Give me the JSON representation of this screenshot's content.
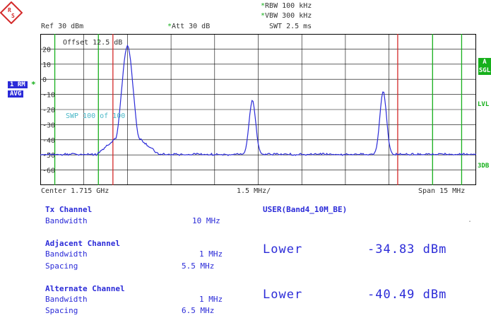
{
  "header": {
    "ref": "Ref  30 dBm",
    "att": "Att  30 dB",
    "rbw": "RBW 100 kHz",
    "vbw": "VBW 300 kHz",
    "swt": "SWT 2.5 ms"
  },
  "left_badges": {
    "trace": "1 RM",
    "avg": "AVG"
  },
  "right_badges": {
    "a": "A",
    "sgl": "SGL",
    "lvl": "LVL",
    "db3": "3DB"
  },
  "plot_annotations": {
    "offset": "Offset  12.5 dB",
    "swp": "SWP   100 of   100"
  },
  "axis": {
    "y_ticks": [
      "20",
      "10",
      "0",
      "-10",
      "-20",
      "-30",
      "-40",
      "-50",
      "-60"
    ],
    "center": "Center 1.715 GHz",
    "div": "1.5 MHz/",
    "span": "Span 15 MHz"
  },
  "colors": {
    "trace": "#2b2bd8",
    "grid": "#000000",
    "green_lines": "#17b01c",
    "red_lines": "#d42a2a"
  },
  "chart_data": {
    "type": "line",
    "xlim": [
      -7.5,
      7.5
    ],
    "ylim": [
      -70,
      30
    ],
    "x_unit": "MHz from center",
    "y_unit": "dBm",
    "peaks": [
      {
        "x": -4.5,
        "y": 22
      },
      {
        "x": -0.2,
        "y": -14
      },
      {
        "x": 4.3,
        "y": -8
      }
    ],
    "noise_floor": -50,
    "green_marker_lines_x": [
      -7.0,
      -5.5,
      6.0,
      7.0
    ],
    "red_marker_lines_x": [
      -5.0,
      4.8
    ]
  },
  "tx": {
    "title": "Tx Channel",
    "bw_label": "Bandwidth",
    "bw_value": "10 MHz"
  },
  "adj": {
    "title": "Adjacent Channel",
    "bw_label": "Bandwidth",
    "bw_value": "1 MHz",
    "sp_label": "Spacing",
    "sp_value": "5.5 MHz"
  },
  "alt": {
    "title": "Alternate Channel",
    "bw_label": "Bandwidth",
    "bw_value": "1 MHz",
    "sp_label": "Spacing",
    "sp_value": "6.5 MHz"
  },
  "user": {
    "title": "USER(Band4_10M_BE)",
    "dot": "."
  },
  "results": [
    {
      "label": "Lower",
      "value": "-34.83 dBm"
    },
    {
      "label": "Lower",
      "value": "-40.49 dBm"
    }
  ]
}
